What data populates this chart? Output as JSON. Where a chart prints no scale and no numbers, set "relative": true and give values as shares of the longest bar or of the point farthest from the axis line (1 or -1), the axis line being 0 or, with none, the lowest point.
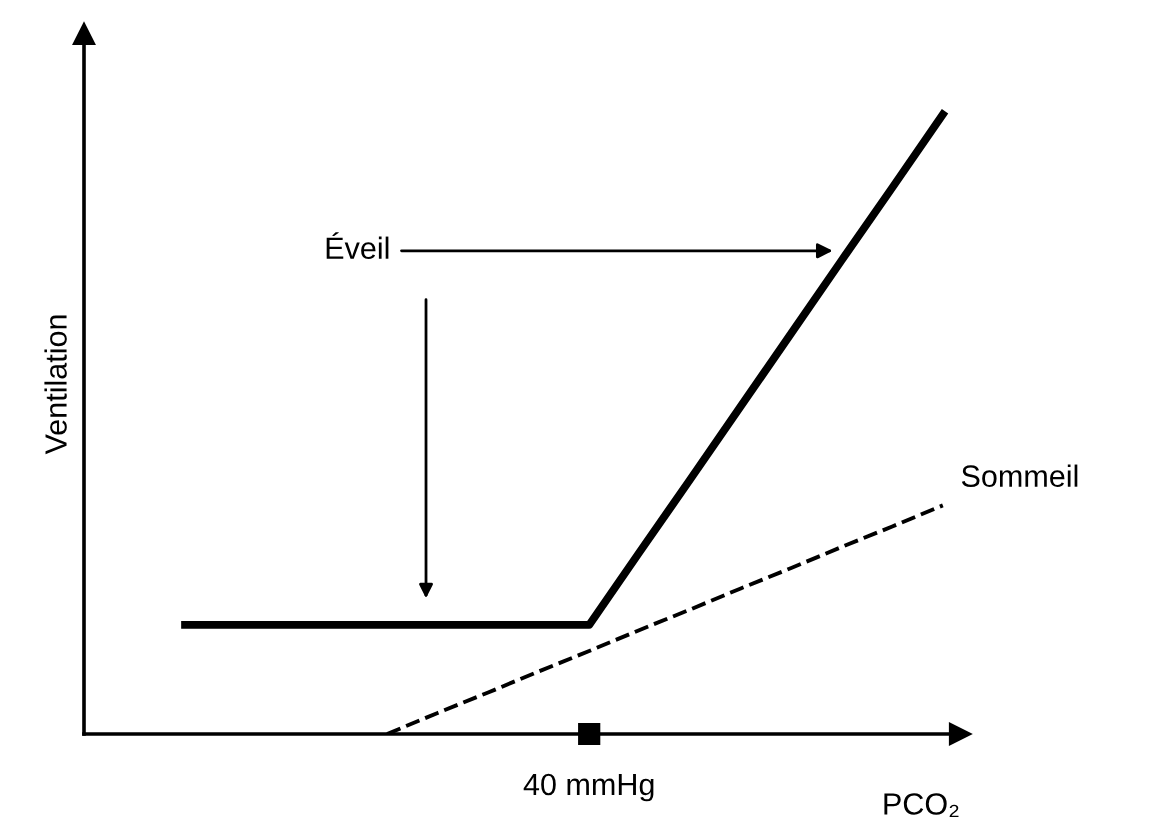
{
  "chart_data": {
    "type": "line",
    "relative": true,
    "xlabel": "PCO₂",
    "ylabel": "Ventilation",
    "legend": false,
    "annotations": [
      "Éveil",
      "40 mmHg"
    ],
    "categories": [
      null,
      null,
      null,
      null,
      null,
      null,
      null,
      null,
      null,
      null,
      null,
      null,
      null,
      null,
      null,
      null,
      null,
      null
    ],
    "series": [
      {
        "color": "#000000",
        "line_style": "solid",
        "values": [
          null,
          null,
          0.176,
          0.176,
          0.176,
          0.176,
          0.176,
          0.176,
          0.176,
          0.176,
          0.176,
          0.294,
          0.411,
          0.529,
          0.647,
          0.765,
          0.882,
          1
        ]
      },
      {
        "name": "Sommeil",
        "color": "#000000",
        "line_style": "dashed",
        "values": [
          null,
          null,
          null,
          null,
          null,
          null,
          0,
          0.034,
          0.067,
          0.101,
          0.134,
          0.168,
          0.201,
          0.235,
          0.268,
          0.302,
          0.335,
          0.369
        ]
      }
    ]
  }
}
